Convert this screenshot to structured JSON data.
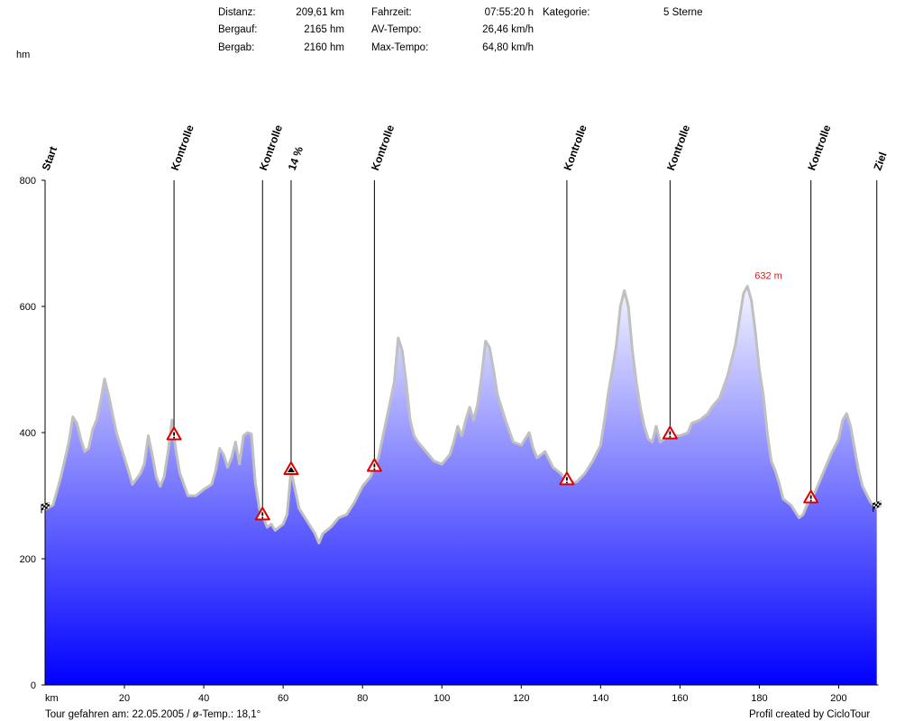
{
  "stats": {
    "distanz_label": "Distanz:",
    "distanz_value": "209,61 km",
    "bergauf_label": "Bergauf:",
    "bergauf_value": "2165 hm",
    "bergab_label": "Bergab:",
    "bergab_value": "2160 hm",
    "fahrzeit_label": "Fahrzeit:",
    "fahrzeit_value": "07:55:20 h",
    "avtempo_label": "AV-Tempo:",
    "avtempo_value": "26,46 km/h",
    "maxtempo_label": "Max-Tempo:",
    "maxtempo_value": "64,80 km/h",
    "kategorie_label": "Kategorie:",
    "kategorie_value": "5 Sterne"
  },
  "footer": {
    "left": "Tour gefahren am: 22.05.2005  /  ø-Temp.: 18,1°",
    "right": "Profil created by CicloTour"
  },
  "chart_data": {
    "type": "area",
    "xlabel": "km",
    "ylabel": "hm",
    "xlim": [
      0,
      210
    ],
    "ylim": [
      0,
      800
    ],
    "x_ticks": [
      20,
      40,
      60,
      80,
      100,
      120,
      140,
      160,
      180,
      200
    ],
    "y_ticks": [
      0,
      200,
      400,
      600,
      800
    ],
    "max_label": "632 m",
    "max_point": {
      "x": 177,
      "y": 632
    },
    "colors": {
      "fill_top": "#f4f4ff",
      "fill_bottom": "#0000ff",
      "outline": "#c0c0c0",
      "label": "#cc2222"
    },
    "profile": [
      [
        0,
        278
      ],
      [
        2,
        285
      ],
      [
        4,
        330
      ],
      [
        6,
        385
      ],
      [
        7,
        425
      ],
      [
        8,
        415
      ],
      [
        9,
        390
      ],
      [
        10,
        370
      ],
      [
        11,
        375
      ],
      [
        12,
        405
      ],
      [
        13,
        420
      ],
      [
        14,
        450
      ],
      [
        15,
        485
      ],
      [
        16,
        460
      ],
      [
        18,
        400
      ],
      [
        20,
        360
      ],
      [
        21,
        340
      ],
      [
        22,
        318
      ],
      [
        24,
        335
      ],
      [
        25,
        350
      ],
      [
        26,
        395
      ],
      [
        27,
        365
      ],
      [
        28,
        330
      ],
      [
        29,
        315
      ],
      [
        30,
        330
      ],
      [
        31,
        370
      ],
      [
        32,
        420
      ],
      [
        33,
        370
      ],
      [
        34,
        335
      ],
      [
        36,
        300
      ],
      [
        38,
        300
      ],
      [
        40,
        310
      ],
      [
        42,
        318
      ],
      [
        43,
        340
      ],
      [
        44,
        375
      ],
      [
        45,
        365
      ],
      [
        46,
        345
      ],
      [
        47,
        360
      ],
      [
        48,
        385
      ],
      [
        49,
        350
      ],
      [
        50,
        395
      ],
      [
        51,
        400
      ],
      [
        52,
        398
      ],
      [
        53,
        320
      ],
      [
        54,
        280
      ],
      [
        55,
        265
      ],
      [
        56,
        250
      ],
      [
        57,
        255
      ],
      [
        58,
        245
      ],
      [
        60,
        255
      ],
      [
        61,
        270
      ],
      [
        62,
        340
      ],
      [
        63,
        310
      ],
      [
        64,
        280
      ],
      [
        66,
        260
      ],
      [
        68,
        240
      ],
      [
        69,
        225
      ],
      [
        70,
        240
      ],
      [
        72,
        250
      ],
      [
        74,
        265
      ],
      [
        76,
        270
      ],
      [
        78,
        290
      ],
      [
        80,
        315
      ],
      [
        82,
        330
      ],
      [
        84,
        360
      ],
      [
        86,
        420
      ],
      [
        88,
        480
      ],
      [
        89,
        550
      ],
      [
        90,
        530
      ],
      [
        91,
        480
      ],
      [
        92,
        420
      ],
      [
        93,
        395
      ],
      [
        94,
        385
      ],
      [
        96,
        370
      ],
      [
        98,
        355
      ],
      [
        100,
        350
      ],
      [
        102,
        365
      ],
      [
        103,
        385
      ],
      [
        104,
        410
      ],
      [
        105,
        395
      ],
      [
        106,
        420
      ],
      [
        107,
        440
      ],
      [
        108,
        420
      ],
      [
        109,
        445
      ],
      [
        110,
        490
      ],
      [
        111,
        545
      ],
      [
        112,
        535
      ],
      [
        113,
        500
      ],
      [
        114,
        460
      ],
      [
        116,
        420
      ],
      [
        118,
        385
      ],
      [
        120,
        380
      ],
      [
        122,
        400
      ],
      [
        123,
        375
      ],
      [
        124,
        360
      ],
      [
        126,
        370
      ],
      [
        128,
        345
      ],
      [
        130,
        335
      ],
      [
        132,
        320
      ],
      [
        134,
        322
      ],
      [
        136,
        335
      ],
      [
        138,
        355
      ],
      [
        140,
        380
      ],
      [
        141,
        420
      ],
      [
        142,
        465
      ],
      [
        143,
        500
      ],
      [
        144,
        540
      ],
      [
        145,
        600
      ],
      [
        146,
        625
      ],
      [
        147,
        600
      ],
      [
        148,
        530
      ],
      [
        149,
        480
      ],
      [
        150,
        440
      ],
      [
        151,
        410
      ],
      [
        152,
        390
      ],
      [
        153,
        385
      ],
      [
        154,
        410
      ],
      [
        155,
        385
      ],
      [
        156,
        390
      ],
      [
        157,
        398
      ],
      [
        158,
        395
      ],
      [
        160,
        395
      ],
      [
        162,
        400
      ],
      [
        163,
        415
      ],
      [
        165,
        420
      ],
      [
        167,
        430
      ],
      [
        168,
        440
      ],
      [
        170,
        455
      ],
      [
        172,
        490
      ],
      [
        174,
        540
      ],
      [
        175,
        580
      ],
      [
        176,
        620
      ],
      [
        177,
        632
      ],
      [
        178,
        610
      ],
      [
        179,
        560
      ],
      [
        180,
        500
      ],
      [
        181,
        460
      ],
      [
        182,
        400
      ],
      [
        183,
        355
      ],
      [
        184,
        340
      ],
      [
        185,
        320
      ],
      [
        186,
        295
      ],
      [
        188,
        285
      ],
      [
        190,
        265
      ],
      [
        191,
        270
      ],
      [
        192,
        285
      ],
      [
        194,
        305
      ],
      [
        196,
        335
      ],
      [
        198,
        365
      ],
      [
        200,
        390
      ],
      [
        201,
        420
      ],
      [
        202,
        430
      ],
      [
        203,
        410
      ],
      [
        204,
        375
      ],
      [
        205,
        340
      ],
      [
        206,
        315
      ],
      [
        208,
        290
      ],
      [
        209.6,
        280
      ]
    ],
    "markers": [
      {
        "km": 0,
        "label": "Start",
        "type": "flag"
      },
      {
        "km": 32.5,
        "label": "Kontrolle",
        "type": "warning"
      },
      {
        "km": 54.8,
        "label": "Kontrolle",
        "type": "warning"
      },
      {
        "km": 62,
        "label": "14 %",
        "type": "climb"
      },
      {
        "km": 83,
        "label": "Kontrolle",
        "type": "warning"
      },
      {
        "km": 131.5,
        "label": "Kontrolle",
        "type": "warning"
      },
      {
        "km": 157.5,
        "label": "Kontrolle",
        "type": "warning"
      },
      {
        "km": 193,
        "label": "Kontrolle",
        "type": "warning"
      },
      {
        "km": 209.6,
        "label": "Ziel",
        "type": "flag"
      }
    ]
  }
}
